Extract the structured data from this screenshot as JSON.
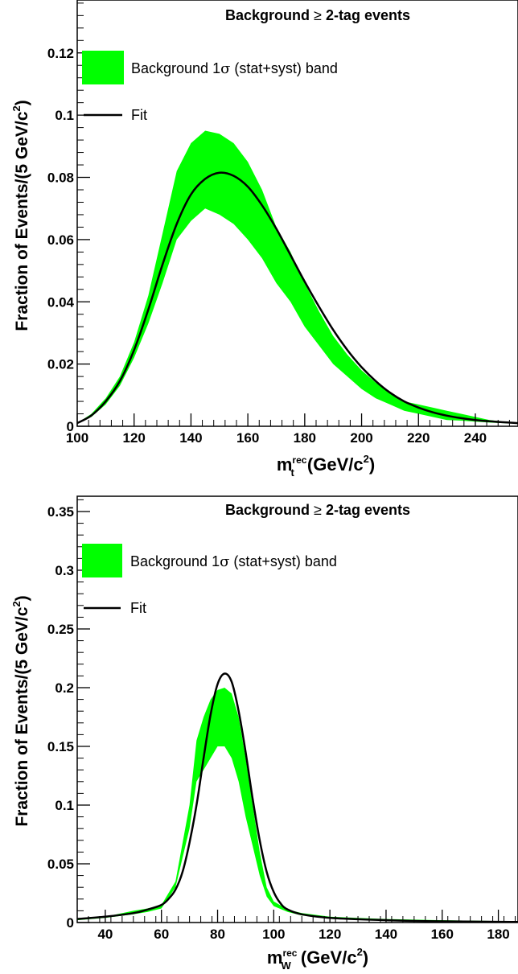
{
  "chart_data": [
    {
      "type": "area",
      "title_prefix": "Background",
      "title_suffix": "2-tag events",
      "ge_symbol": "≥",
      "ylabel_main": "Fraction of Events/(5 GeV/c",
      "ylabel_sup": "2",
      "ylabel_close": ")",
      "xlabel_m": "m",
      "xlabel_sup": "rec",
      "xlabel_sub": "t",
      "xlabel_rest": " (GeV/c",
      "xlabel_sup2": "2",
      "xlabel_close": ")",
      "xlim": [
        100,
        255
      ],
      "ylim": [
        0,
        0.137
      ],
      "x_ticks": [
        100,
        120,
        140,
        160,
        180,
        200,
        220,
        240
      ],
      "x_tick_labels": [
        "100",
        "120",
        "140",
        "160",
        "180",
        "200",
        "220",
        "240"
      ],
      "y_ticks": [
        0,
        0.02,
        0.04,
        0.06,
        0.08,
        0.1,
        0.12
      ],
      "y_tick_labels": [
        "0",
        "0.02",
        "0.04",
        "0.06",
        "0.08",
        "0.1",
        "0.12"
      ],
      "legend": {
        "band_label_pre": "Background 1",
        "band_label_sigma": "σ",
        "band_label_post": " (stat+syst) band",
        "fit_label": "Fit"
      },
      "series": [
        {
          "name": "Background 1σ (stat+syst) band",
          "color": "#00ff00",
          "x": [
            100,
            105,
            110,
            115,
            120,
            125,
            130,
            135,
            140,
            145,
            150,
            155,
            160,
            165,
            170,
            175,
            180,
            185,
            190,
            195,
            200,
            205,
            210,
            215,
            220,
            225,
            230,
            235,
            240,
            245,
            250,
            255
          ],
          "low": [
            0.001,
            0.003,
            0.007,
            0.013,
            0.022,
            0.033,
            0.046,
            0.06,
            0.066,
            0.07,
            0.068,
            0.065,
            0.06,
            0.054,
            0.046,
            0.04,
            0.032,
            0.026,
            0.02,
            0.016,
            0.012,
            0.009,
            0.007,
            0.005,
            0.004,
            0.003,
            0.002,
            0.0018,
            0.0015,
            0.0012,
            0.001,
            0.0008
          ],
          "high": [
            0.001,
            0.004,
            0.009,
            0.016,
            0.027,
            0.042,
            0.062,
            0.082,
            0.091,
            0.095,
            0.094,
            0.091,
            0.085,
            0.076,
            0.064,
            0.056,
            0.046,
            0.037,
            0.029,
            0.023,
            0.018,
            0.014,
            0.011,
            0.008,
            0.007,
            0.006,
            0.005,
            0.004,
            0.003,
            0.002,
            0.0015,
            0.001
          ]
        },
        {
          "name": "Fit",
          "color": "#000000",
          "x": [
            100,
            105,
            110,
            115,
            120,
            125,
            130,
            135,
            140,
            145,
            150,
            155,
            160,
            165,
            170,
            175,
            180,
            185,
            190,
            195,
            200,
            205,
            210,
            215,
            220,
            225,
            230,
            235,
            240,
            245,
            250,
            255
          ],
          "y": [
            0.001,
            0.0035,
            0.008,
            0.0145,
            0.0245,
            0.0375,
            0.052,
            0.065,
            0.0745,
            0.0795,
            0.0815,
            0.0805,
            0.077,
            0.071,
            0.0635,
            0.055,
            0.0465,
            0.0385,
            0.031,
            0.0245,
            0.019,
            0.0145,
            0.0108,
            0.008,
            0.006,
            0.0045,
            0.0034,
            0.0026,
            0.002,
            0.0016,
            0.0013,
            0.001
          ]
        }
      ]
    },
    {
      "type": "area",
      "title_prefix": "Background",
      "title_suffix": "2-tag events",
      "ge_symbol": "≥",
      "ylabel_main": "Fraction of Events/(5 GeV/c",
      "ylabel_sup": "2",
      "ylabel_close": ")",
      "xlabel_m": "m",
      "xlabel_sup": "rec",
      "xlabel_sub": "W",
      "xlabel_rest": " (GeV/c",
      "xlabel_sup2": "2",
      "xlabel_close": ")",
      "xlim": [
        30,
        187
      ],
      "ylim": [
        0,
        0.363
      ],
      "x_ticks": [
        40,
        60,
        80,
        100,
        120,
        140,
        160,
        180
      ],
      "x_tick_labels": [
        "40",
        "60",
        "80",
        "100",
        "120",
        "140",
        "160",
        "180"
      ],
      "y_ticks": [
        0,
        0.05,
        0.1,
        0.15,
        0.2,
        0.25,
        0.3,
        0.35
      ],
      "y_tick_labels": [
        "0",
        "0.05",
        "0.1",
        "0.15",
        "0.2",
        "0.25",
        "0.3",
        "0.35"
      ],
      "legend": {
        "band_label_pre": "Background 1",
        "band_label_sigma": "σ",
        "band_label_post": " (stat+syst) band",
        "fit_label": "Fit"
      },
      "series": [
        {
          "name": "Background 1σ (stat+syst) band",
          "color": "#00ff00",
          "x": [
            30,
            40,
            50,
            55,
            60,
            65,
            70,
            72.5,
            75,
            77.5,
            80,
            82.5,
            85,
            87.5,
            90,
            92.5,
            95,
            97.5,
            100,
            105,
            110,
            120,
            130,
            140,
            160,
            187
          ],
          "low": [
            0.002,
            0.004,
            0.007,
            0.009,
            0.012,
            0.03,
            0.08,
            0.12,
            0.13,
            0.14,
            0.15,
            0.15,
            0.14,
            0.12,
            0.09,
            0.065,
            0.04,
            0.022,
            0.014,
            0.009,
            0.006,
            0.004,
            0.003,
            0.002,
            0.001,
            0.001
          ],
          "high": [
            0.003,
            0.005,
            0.01,
            0.012,
            0.015,
            0.035,
            0.1,
            0.155,
            0.175,
            0.19,
            0.198,
            0.2,
            0.195,
            0.175,
            0.14,
            0.1,
            0.06,
            0.03,
            0.018,
            0.011,
            0.008,
            0.005,
            0.004,
            0.003,
            0.002,
            0.001
          ]
        },
        {
          "name": "Fit",
          "color": "#000000",
          "x": [
            30,
            40,
            50,
            55,
            60,
            62.5,
            65,
            67.5,
            70,
            72.5,
            75,
            77.5,
            80,
            82.5,
            85,
            87.5,
            90,
            92.5,
            95,
            97.5,
            100,
            102.5,
            105,
            110,
            120,
            140,
            160,
            187
          ],
          "y": [
            0.003,
            0.005,
            0.008,
            0.011,
            0.015,
            0.02,
            0.028,
            0.043,
            0.068,
            0.1,
            0.14,
            0.177,
            0.203,
            0.212,
            0.205,
            0.18,
            0.145,
            0.105,
            0.07,
            0.043,
            0.026,
            0.016,
            0.011,
            0.007,
            0.004,
            0.002,
            0.001,
            0.0005
          ]
        }
      ]
    }
  ]
}
